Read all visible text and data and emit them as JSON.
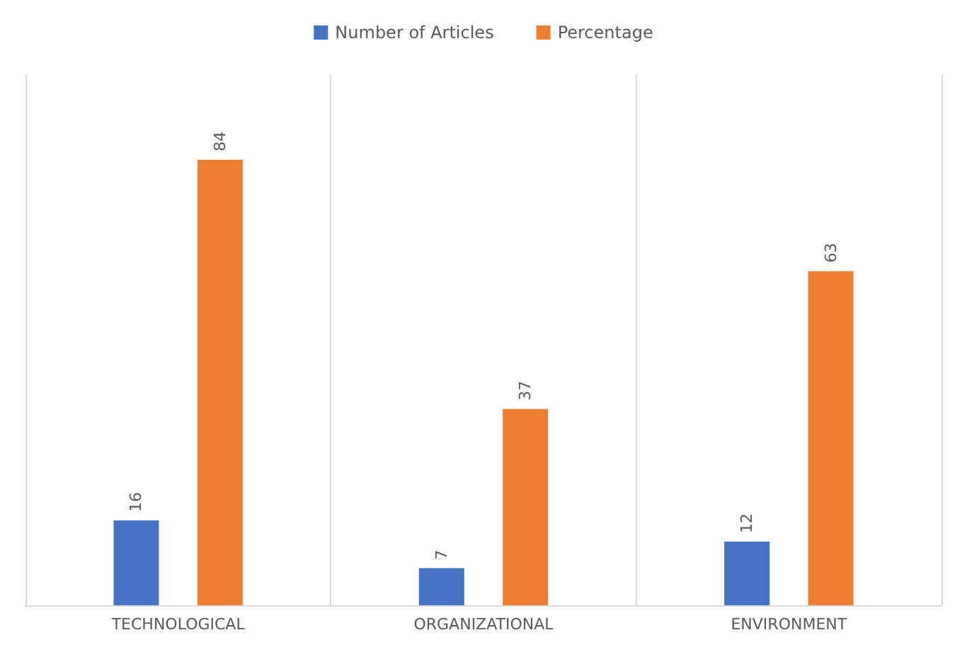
{
  "chart_data": {
    "type": "bar",
    "categories": [
      "TECHNOLOGICAL",
      "ORGANIZATIONAL",
      "ENVIRONMENT"
    ],
    "series": [
      {
        "name": "Number of Articles",
        "color": "#4472c4",
        "values": [
          16,
          7,
          12
        ]
      },
      {
        "name": "Percentage",
        "color": "#ed7d31",
        "values": [
          84,
          37,
          63
        ]
      }
    ],
    "data_labels": true,
    "legend": "top",
    "grid": "x"
  }
}
